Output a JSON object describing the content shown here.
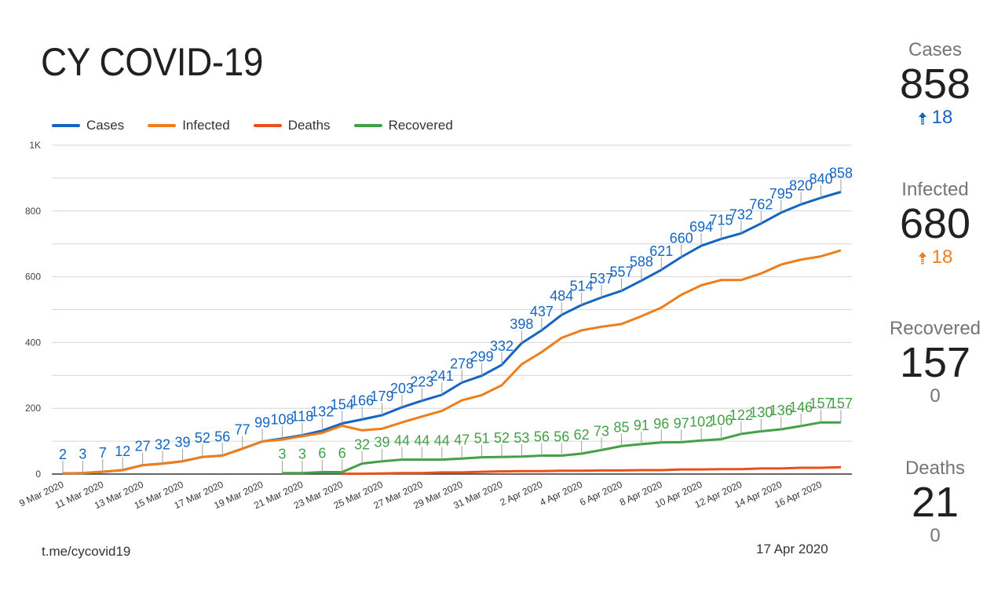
{
  "title": "CY COVID-19",
  "footer": {
    "source": "t.me/cycovid19",
    "date": "17 Apr 2020"
  },
  "kpis": [
    {
      "label": "Cases",
      "value": "858",
      "delta": "18",
      "delta_direction": "up",
      "delta_color": "#1565c0"
    },
    {
      "label": "Infected",
      "value": "680",
      "delta": "18",
      "delta_direction": "up",
      "delta_color": "#ef7d1a"
    },
    {
      "label": "Recovered",
      "value": "157",
      "delta": "0",
      "delta_direction": "none",
      "delta_color": "#757575"
    },
    {
      "label": "Deaths",
      "value": "21",
      "delta": "0",
      "delta_direction": "none",
      "delta_color": "#757575"
    }
  ],
  "chart_data": {
    "type": "line",
    "title": "",
    "xlabel": "",
    "ylabel": "",
    "ylim": [
      0,
      1000
    ],
    "y_ticks": [
      {
        "value": 0,
        "label": "0"
      },
      {
        "value": 200,
        "label": "200"
      },
      {
        "value": 400,
        "label": "400"
      },
      {
        "value": 600,
        "label": "600"
      },
      {
        "value": 800,
        "label": "800"
      },
      {
        "value": 1000,
        "label": "1K"
      }
    ],
    "y_minor_gridlines_every": 100,
    "grid": true,
    "legend_position": "top-left",
    "x": [
      "9 Mar 2020",
      "10 Mar 2020",
      "11 Mar 2020",
      "12 Mar 2020",
      "13 Mar 2020",
      "14 Mar 2020",
      "15 Mar 2020",
      "16 Mar 2020",
      "17 Mar 2020",
      "18 Mar 2020",
      "19 Mar 2020",
      "20 Mar 2020",
      "21 Mar 2020",
      "22 Mar 2020",
      "23 Mar 2020",
      "24 Mar 2020",
      "25 Mar 2020",
      "26 Mar 2020",
      "27 Mar 2020",
      "28 Mar 2020",
      "29 Mar 2020",
      "30 Mar 2020",
      "31 Mar 2020",
      "1 Apr 2020",
      "2 Apr 2020",
      "3 Apr 2020",
      "4 Apr 2020",
      "5 Apr 2020",
      "6 Apr 2020",
      "7 Apr 2020",
      "8 Apr 2020",
      "9 Apr 2020",
      "10 Apr 2020",
      "11 Apr 2020",
      "12 Apr 2020",
      "13 Apr 2020",
      "14 Apr 2020",
      "15 Apr 2020",
      "16 Apr 2020",
      "17 Apr 2020"
    ],
    "x_tick_labels_every": 2,
    "series": [
      {
        "name": "Cases",
        "color": "#1565c0",
        "show_labels": true,
        "values": [
          2,
          3,
          7,
          12,
          27,
          32,
          39,
          52,
          56,
          77,
          99,
          108,
          118,
          132,
          154,
          166,
          179,
          203,
          223,
          241,
          278,
          299,
          332,
          398,
          437,
          484,
          514,
          537,
          557,
          588,
          621,
          660,
          694,
          715,
          732,
          762,
          795,
          820,
          840,
          858
        ]
      },
      {
        "name": "Infected",
        "color": "#ef7d1a",
        "show_labels": false,
        "values": [
          2,
          3,
          7,
          12,
          27,
          32,
          39,
          52,
          56,
          77,
          99,
          105,
          115,
          125,
          147,
          133,
          138,
          157,
          175,
          192,
          224,
          240,
          270,
          334,
          371,
          414,
          437,
          448,
          456,
          480,
          506,
          545,
          574,
          590,
          590,
          610,
          637,
          652,
          662,
          680
        ]
      },
      {
        "name": "Deaths",
        "color": "#e8501e",
        "show_labels": false,
        "values": [
          null,
          null,
          null,
          null,
          null,
          null,
          null,
          null,
          null,
          null,
          null,
          null,
          null,
          null,
          1,
          1,
          2,
          3,
          3,
          5,
          5,
          7,
          8,
          9,
          9,
          10,
          10,
          11,
          11,
          12,
          12,
          14,
          14,
          15,
          15,
          17,
          17,
          19,
          19,
          21
        ]
      },
      {
        "name": "Recovered",
        "color": "#43a047",
        "show_labels": true,
        "values": [
          null,
          null,
          null,
          null,
          null,
          null,
          null,
          null,
          null,
          null,
          null,
          3,
          3,
          6,
          6,
          32,
          39,
          44,
          44,
          44,
          47,
          51,
          52,
          53,
          56,
          56,
          62,
          73,
          85,
          91,
          96,
          97,
          102,
          106,
          122,
          130,
          136,
          146,
          157,
          157
        ]
      }
    ]
  }
}
